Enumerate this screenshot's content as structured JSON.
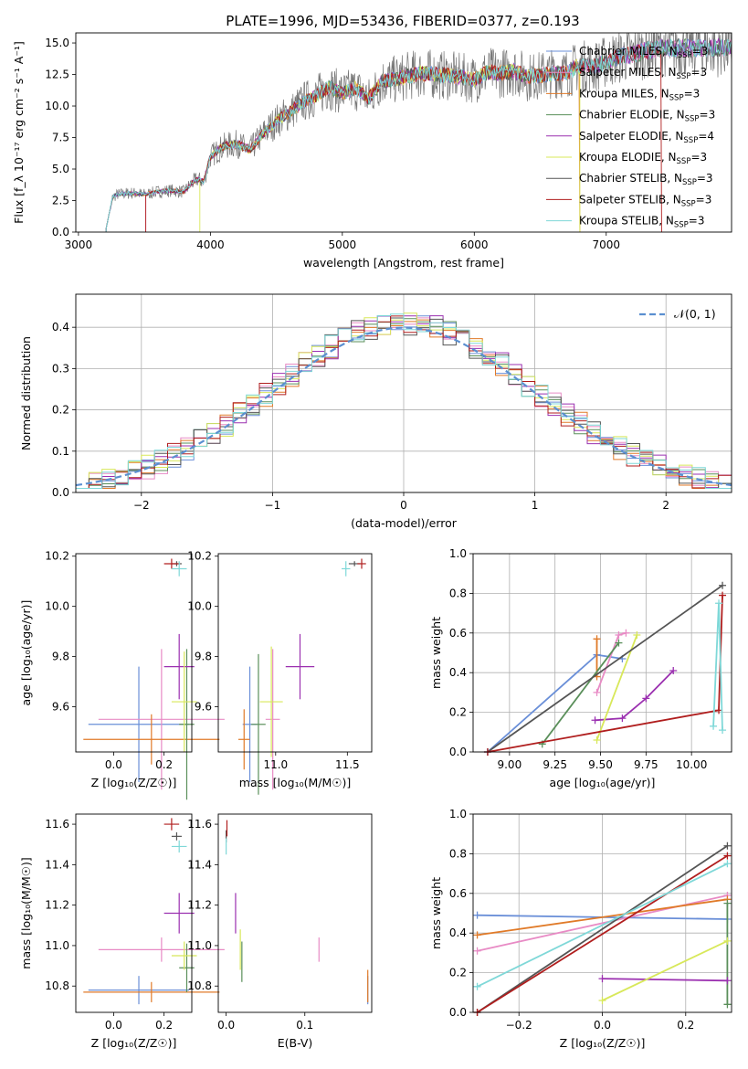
{
  "figure_title": "PLATE=1996, MJD=53436, FIBERID=0377, z=0.193",
  "colors": {
    "Chabrier MILES": "#6a8fd8",
    "Salpeter MILES": "#e88bc5",
    "Kroupa MILES": "#e07a28",
    "Chabrier ELODIE": "#5a8f5a",
    "Salpeter ELODIE": "#9b30b0",
    "Kroupa ELODIE": "#d8e85a",
    "Chabrier STELIB": "#555555",
    "Salpeter STELIB": "#b01e1e",
    "Kroupa STELIB": "#7fd8d8",
    "normal": "#5b8fd0"
  },
  "chart_data": [
    {
      "id": "spectrum",
      "type": "line",
      "xlabel": "wavelength [Angstrom, rest frame]",
      "ylabel": "Flux [f_λ 10⁻¹⁷ erg cm⁻² s⁻¹ A⁻¹]",
      "xlim": [
        2980,
        7950
      ],
      "ylim": [
        0,
        15.8
      ],
      "xticks": [
        3000,
        4000,
        5000,
        6000,
        7000
      ],
      "yticks": [
        0.0,
        2.5,
        5.0,
        7.5,
        10.0,
        12.5,
        15.0
      ],
      "grid": false,
      "legend_position": "top-right",
      "legend": [
        {
          "name": "Chabrier MILES",
          "nssp": "3"
        },
        {
          "name": "Salpeter MILES",
          "nssp": "3"
        },
        {
          "name": "Kroupa MILES",
          "nssp": "3"
        },
        {
          "name": "Chabrier ELODIE",
          "nssp": "3"
        },
        {
          "name": "Salpeter ELODIE",
          "nssp": "4"
        },
        {
          "name": "Kroupa ELODIE",
          "nssp": "3"
        },
        {
          "name": "Chabrier STELIB",
          "nssp": "3"
        },
        {
          "name": "Salpeter STELIB",
          "nssp": "3"
        },
        {
          "name": "Kroupa STELIB",
          "nssp": "3"
        }
      ],
      "model_shape": {
        "x": [
          3210,
          3260,
          3300,
          3400,
          3500,
          3600,
          3700,
          3800,
          3850,
          3900,
          3950,
          4000,
          4100,
          4200,
          4300,
          4400,
          4500,
          4600,
          4700,
          4800,
          4900,
          5000,
          5100,
          5200,
          5300,
          5400,
          5500,
          5600,
          5700,
          5800,
          5900,
          6000,
          6100,
          6200,
          6300,
          6400,
          6500,
          6600,
          6700,
          6800,
          6900,
          7000,
          7100,
          7200,
          7300,
          7400
        ],
        "y": [
          0.3,
          2.8,
          3.0,
          3.1,
          3.0,
          3.2,
          3.3,
          3.2,
          3.8,
          4.2,
          4.0,
          6.0,
          6.8,
          7.0,
          6.5,
          7.8,
          8.8,
          9.5,
          10.3,
          10.8,
          11.5,
          11.0,
          11.4,
          10.6,
          12.0,
          12.1,
          12.4,
          12.6,
          12.5,
          12.4,
          12.3,
          12.1,
          12.7,
          12.6,
          12.8,
          12.3,
          12.4,
          12.6,
          12.6,
          13.2,
          13.1,
          13.5,
          13.9,
          14.1,
          14.4,
          14.6
        ]
      },
      "cutoffs": [
        {
          "model": "Salpeter MILES",
          "start": 3510,
          "end": 7950
        },
        {
          "model": "Kroupa MILES",
          "start": 3210,
          "end": 6800
        },
        {
          "model": "Kroupa ELODIE",
          "start": 3920,
          "end": 6800
        },
        {
          "model": "Salpeter STELIB",
          "start": 3510,
          "end": 7420
        }
      ],
      "data_line_color": "#777777"
    },
    {
      "id": "residuals",
      "type": "step-histogram",
      "xlabel": "(data-model)/error",
      "ylabel": "Normed distribution",
      "xlim": [
        -2.5,
        2.5
      ],
      "ylim": [
        0,
        0.48
      ],
      "xticks": [
        -2,
        -1,
        0,
        1,
        2
      ],
      "yticks": [
        0.0,
        0.1,
        0.2,
        0.3,
        0.4
      ],
      "grid": true,
      "legend_position": "top-right",
      "legend_label": "𝒩(0, 1)",
      "bin_width": 0.1,
      "bin_start": -2.5
    },
    {
      "id": "age_vs_Z",
      "type": "errorbar",
      "xlabel": "Z [log₁₀(Z/Z☉)]",
      "ylabel": "age  [log₁₀(age/yr)]",
      "xlim": [
        -0.15,
        0.31
      ],
      "ylim": [
        9.42,
        10.21
      ],
      "xticks": [
        0.0,
        0.2
      ],
      "yticks": [
        9.6,
        9.8,
        10.0,
        10.2
      ],
      "points": [
        {
          "model": "Chabrier MILES",
          "x": 0.1,
          "y": 9.53,
          "xerr": 0.2,
          "yerr": 0.23
        },
        {
          "model": "Salpeter MILES",
          "x": 0.19,
          "y": 9.55,
          "xerr": 0.25,
          "yerr": 0.28
        },
        {
          "model": "Kroupa MILES",
          "x": 0.15,
          "y": 9.47,
          "xerr": 0.27,
          "yerr": 0.1
        },
        {
          "model": "Chabrier ELODIE",
          "x": 0.29,
          "y": 9.53,
          "xerr": 0.03,
          "yerr": 0.3
        },
        {
          "model": "Salpeter ELODIE",
          "x": 0.26,
          "y": 9.76,
          "xerr": 0.06,
          "yerr": 0.13
        },
        {
          "model": "Kroupa ELODIE",
          "x": 0.28,
          "y": 9.62,
          "xerr": 0.05,
          "yerr": 0.2
        },
        {
          "model": "Chabrier STELIB",
          "x": 0.25,
          "y": 10.17,
          "xerr": 0.02,
          "yerr": 0.01
        },
        {
          "model": "Salpeter STELIB",
          "x": 0.23,
          "y": 10.17,
          "xerr": 0.03,
          "yerr": 0.02
        },
        {
          "model": "Kroupa STELIB",
          "x": 0.26,
          "y": 10.15,
          "xerr": 0.03,
          "yerr": 0.03
        }
      ]
    },
    {
      "id": "age_vs_mass",
      "type": "errorbar",
      "xlabel": "mass [log₁₀(M/M☉)]",
      "ylabel": "",
      "xlim": [
        10.6,
        11.67
      ],
      "ylim": [
        9.42,
        10.21
      ],
      "xticks": [
        11.0,
        11.5
      ],
      "yticks": [
        9.6,
        9.8,
        10.0,
        10.2
      ],
      "points": [
        {
          "model": "Chabrier MILES",
          "x": 10.82,
          "y": 9.53,
          "xerr": 0.05,
          "yerr": 0.23
        },
        {
          "model": "Salpeter MILES",
          "x": 10.98,
          "y": 9.55,
          "xerr": 0.05,
          "yerr": 0.28
        },
        {
          "model": "Kroupa MILES",
          "x": 10.78,
          "y": 9.47,
          "xerr": 0.04,
          "yerr": 0.12
        },
        {
          "model": "Chabrier ELODIE",
          "x": 10.88,
          "y": 9.53,
          "xerr": 0.05,
          "yerr": 0.28
        },
        {
          "model": "Salpeter ELODIE",
          "x": 11.17,
          "y": 9.76,
          "xerr": 0.1,
          "yerr": 0.13
        },
        {
          "model": "Kroupa ELODIE",
          "x": 10.97,
          "y": 9.62,
          "xerr": 0.08,
          "yerr": 0.22
        },
        {
          "model": "Chabrier STELIB",
          "x": 11.55,
          "y": 10.17,
          "xerr": 0.04,
          "yerr": 0.01
        },
        {
          "model": "Salpeter STELIB",
          "x": 11.6,
          "y": 10.17,
          "xerr": 0.03,
          "yerr": 0.02
        },
        {
          "model": "Kroupa STELIB",
          "x": 11.49,
          "y": 10.15,
          "xerr": 0.03,
          "yerr": 0.03
        }
      ]
    },
    {
      "id": "weight_vs_age",
      "type": "line",
      "xlabel": "age  [log₁₀(age/yr)]",
      "ylabel": "mass weight",
      "xlim": [
        8.8,
        10.22
      ],
      "ylim": [
        0,
        1.0
      ],
      "xticks": [
        9.0,
        9.25,
        9.5,
        9.75,
        10.0
      ],
      "yticks": [
        0.0,
        0.2,
        0.4,
        0.6,
        0.8,
        1.0
      ],
      "grid": true,
      "series": [
        {
          "model": "Chabrier MILES",
          "x": [
            8.88,
            9.48,
            9.62
          ],
          "y": [
            0.0,
            0.49,
            0.47
          ]
        },
        {
          "model": "Salpeter MILES",
          "x": [
            9.48,
            9.6,
            9.64
          ],
          "y": [
            0.3,
            0.59,
            0.6
          ]
        },
        {
          "model": "Kroupa MILES",
          "x": [
            9.48,
            9.48
          ],
          "y": [
            0.38,
            0.57
          ]
        },
        {
          "model": "Chabrier ELODIE",
          "x": [
            9.18,
            9.6
          ],
          "y": [
            0.04,
            0.55
          ]
        },
        {
          "model": "Salpeter ELODIE",
          "x": [
            9.47,
            9.62,
            9.75,
            9.9
          ],
          "y": [
            0.16,
            0.17,
            0.27,
            0.41
          ]
        },
        {
          "model": "Kroupa ELODIE",
          "x": [
            9.48,
            9.7
          ],
          "y": [
            0.06,
            0.59
          ]
        },
        {
          "model": "Chabrier STELIB",
          "x": [
            8.88,
            10.17
          ],
          "y": [
            0.0,
            0.84
          ]
        },
        {
          "model": "Salpeter STELIB",
          "x": [
            8.88,
            10.15,
            10.17
          ],
          "y": [
            0.0,
            0.21,
            0.79
          ]
        },
        {
          "model": "Kroupa STELIB",
          "x": [
            10.12,
            10.15,
            10.17
          ],
          "y": [
            0.13,
            0.75,
            0.11
          ]
        }
      ]
    },
    {
      "id": "mass_vs_Z",
      "type": "errorbar",
      "xlabel": "Z [log₁₀(Z/Z☉)]",
      "ylabel": "mass [log₁₀(M/M☉)]",
      "xlim": [
        -0.15,
        0.31
      ],
      "ylim": [
        10.67,
        11.65
      ],
      "xticks": [
        0.0,
        0.2
      ],
      "yticks": [
        10.8,
        11.0,
        11.2,
        11.4,
        11.6
      ],
      "points": [
        {
          "model": "Chabrier MILES",
          "x": 0.1,
          "y": 10.78,
          "xerr": 0.2,
          "yerr": 0.07
        },
        {
          "model": "Salpeter MILES",
          "x": 0.19,
          "y": 10.98,
          "xerr": 0.25,
          "yerr": 0.06
        },
        {
          "model": "Kroupa MILES",
          "x": 0.15,
          "y": 10.77,
          "xerr": 0.27,
          "yerr": 0.05
        },
        {
          "model": "Chabrier ELODIE",
          "x": 0.29,
          "y": 10.89,
          "xerr": 0.03,
          "yerr": 0.12
        },
        {
          "model": "Salpeter ELODIE",
          "x": 0.26,
          "y": 11.16,
          "xerr": 0.06,
          "yerr": 0.1
        },
        {
          "model": "Kroupa ELODIE",
          "x": 0.28,
          "y": 10.95,
          "xerr": 0.05,
          "yerr": 0.07
        },
        {
          "model": "Chabrier STELIB",
          "x": 0.25,
          "y": 11.54,
          "xerr": 0.02,
          "yerr": 0.02
        },
        {
          "model": "Salpeter STELIB",
          "x": 0.23,
          "y": 11.6,
          "xerr": 0.03,
          "yerr": 0.03
        },
        {
          "model": "Kroupa STELIB",
          "x": 0.26,
          "y": 11.49,
          "xerr": 0.03,
          "yerr": 0.03
        }
      ]
    },
    {
      "id": "mass_vs_ebv",
      "type": "errorbar",
      "xlabel": "E(B-V)",
      "ylabel": "",
      "xlim": [
        -0.01,
        0.185
      ],
      "ylim": [
        10.67,
        11.65
      ],
      "xticks": [
        0.0,
        0.1
      ],
      "yticks": [
        10.8,
        11.0,
        11.2,
        11.4,
        11.6
      ],
      "points": [
        {
          "model": "Chabrier MILES",
          "x": 0.18,
          "y": 10.78,
          "xerr": 0,
          "yerr": 0.07
        },
        {
          "model": "Salpeter MILES",
          "x": 0.118,
          "y": 10.98,
          "xerr": 0,
          "yerr": 0.06
        },
        {
          "model": "Kroupa MILES",
          "x": 0.18,
          "y": 10.8,
          "xerr": 0,
          "yerr": 0.08
        },
        {
          "model": "Chabrier ELODIE",
          "x": 0.02,
          "y": 10.92,
          "xerr": 0,
          "yerr": 0.1
        },
        {
          "model": "Salpeter ELODIE",
          "x": 0.012,
          "y": 11.16,
          "xerr": 0,
          "yerr": 0.1
        },
        {
          "model": "Kroupa ELODIE",
          "x": 0.018,
          "y": 10.98,
          "xerr": 0,
          "yerr": 0.1
        },
        {
          "model": "Chabrier STELIB",
          "x": 0.0,
          "y": 11.54,
          "xerr": 0,
          "yerr": 0.03
        },
        {
          "model": "Salpeter STELIB",
          "x": 0.001,
          "y": 11.58,
          "xerr": 0,
          "yerr": 0.04
        },
        {
          "model": "Kroupa STELIB",
          "x": 0.0,
          "y": 11.49,
          "xerr": 0,
          "yerr": 0.04
        }
      ]
    },
    {
      "id": "weight_vs_Z",
      "type": "line",
      "xlabel": "Z [log₁₀(Z/Z☉)]",
      "ylabel": "mass weight",
      "xlim": [
        -0.31,
        0.31
      ],
      "ylim": [
        0,
        1.0
      ],
      "xticks": [
        -0.2,
        0.0,
        0.2
      ],
      "yticks": [
        0.0,
        0.2,
        0.4,
        0.6,
        0.8,
        1.0
      ],
      "grid": true,
      "series": [
        {
          "model": "Chabrier MILES",
          "x": [
            -0.3,
            0.3
          ],
          "y": [
            0.49,
            0.47
          ]
        },
        {
          "model": "Salpeter MILES",
          "x": [
            -0.3,
            0.3
          ],
          "y": [
            0.31,
            0.59
          ]
        },
        {
          "model": "Kroupa MILES",
          "x": [
            -0.3,
            0.3
          ],
          "y": [
            0.39,
            0.57
          ]
        },
        {
          "model": "Chabrier ELODIE",
          "x": [
            0.3,
            0.3
          ],
          "y": [
            0.04,
            0.55
          ]
        },
        {
          "model": "Salpeter ELODIE",
          "x": [
            0.0,
            0.3
          ],
          "y": [
            0.17,
            0.16
          ]
        },
        {
          "model": "Kroupa ELODIE",
          "x": [
            0.0,
            0.3
          ],
          "y": [
            0.06,
            0.36
          ]
        },
        {
          "model": "Chabrier STELIB",
          "x": [
            -0.3,
            0.3
          ],
          "y": [
            0.0,
            0.84
          ]
        },
        {
          "model": "Salpeter STELIB",
          "x": [
            -0.3,
            0.3
          ],
          "y": [
            0.0,
            0.79
          ]
        },
        {
          "model": "Kroupa STELIB",
          "x": [
            -0.3,
            0.3
          ],
          "y": [
            0.13,
            0.75
          ]
        }
      ]
    }
  ]
}
